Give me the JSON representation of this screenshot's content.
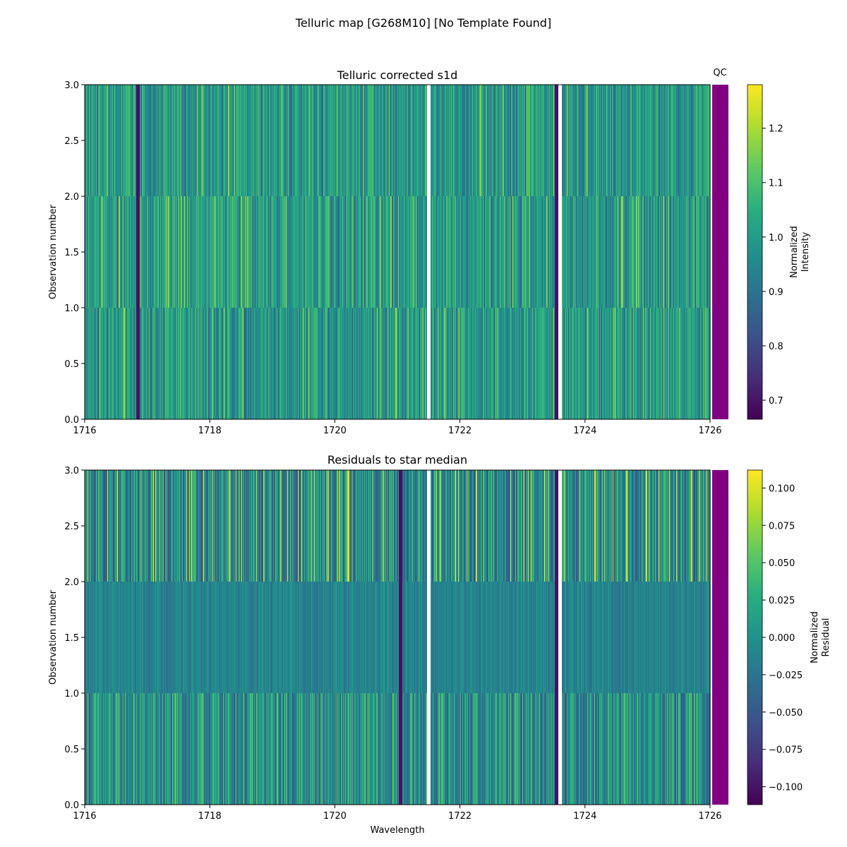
{
  "figure_title": "Telluric map [G268M10] [No Template Found]",
  "chart_data": [
    {
      "type": "heatmap",
      "title": "Telluric corrected s1d",
      "xlabel": "",
      "ylabel": "Observation number",
      "xlim": [
        1716,
        1726
      ],
      "ylim": [
        0,
        3
      ],
      "x_ticks": [
        "1716",
        "1718",
        "1720",
        "1722",
        "1724",
        "1726"
      ],
      "y_ticks": [
        "0.0",
        "0.5",
        "1.0",
        "1.5",
        "2.0",
        "2.5",
        "3.0"
      ],
      "rows": 3,
      "colormap": "viridis",
      "gaps_x": [
        1721.5,
        1723.6
      ],
      "strong_features_x": [
        1716.85,
        1723.55
      ],
      "colorbar": {
        "label": "Normalized\nIntensity",
        "vmin": 0.665,
        "vmax": 1.28,
        "ticks": [
          "0.7",
          "0.8",
          "0.9",
          "1.0",
          "1.1",
          "1.2"
        ],
        "tick_values": [
          0.7,
          0.8,
          0.9,
          1.0,
          1.1,
          1.2
        ]
      },
      "qc_label": "QC",
      "qc_color": "#800080"
    },
    {
      "type": "heatmap",
      "title": "Residuals to star median",
      "xlabel": "Wavelength",
      "ylabel": "Observation number",
      "xlim": [
        1716,
        1726
      ],
      "ylim": [
        0,
        3
      ],
      "x_ticks": [
        "1716",
        "1718",
        "1720",
        "1722",
        "1724",
        "1726"
      ],
      "y_ticks": [
        "0.0",
        "0.5",
        "1.0",
        "1.5",
        "2.0",
        "2.5",
        "3.0"
      ],
      "rows": 3,
      "colormap": "viridis",
      "gaps_x": [
        1721.5,
        1723.6
      ],
      "strong_features_x": [
        1721.05,
        1723.55
      ],
      "colorbar": {
        "label": "Normalized\nResidual",
        "vmin": -0.112,
        "vmax": 0.112,
        "ticks": [
          "0.100",
          "0.075",
          "0.050",
          "0.025",
          "0.000",
          "−0.025",
          "−0.050",
          "−0.075",
          "−0.100"
        ],
        "tick_values": [
          0.1,
          0.075,
          0.05,
          0.025,
          0.0,
          -0.025,
          -0.05,
          -0.075,
          -0.1
        ]
      },
      "qc_label": "",
      "qc_color": "#800080"
    }
  ]
}
